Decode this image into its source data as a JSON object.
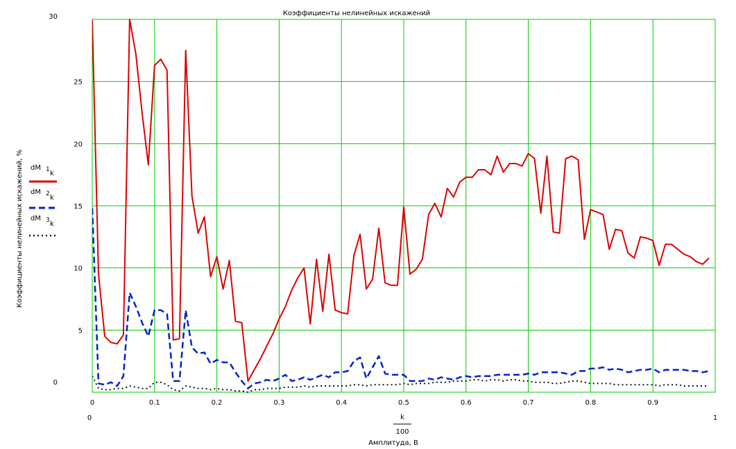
{
  "chart_data": {
    "type": "line",
    "title": "Коэффициенты нелинейных искажений",
    "ylabel": "Коэффициенты нелинейных искажений, %",
    "xlabel_expr": {
      "numerator": "k",
      "denominator": "100"
    },
    "xlabel": "Амплитуда, В",
    "xlim": [
      0,
      1
    ],
    "ylim": [
      0,
      30
    ],
    "x_range_labels": {
      "left": "0",
      "right": "1"
    },
    "y_range_labels": {
      "top": "30",
      "bottom": "0"
    },
    "x_ticks": [
      0,
      0.1,
      0.2,
      0.3,
      0.4,
      0.5,
      0.6,
      0.7,
      0.8,
      0.9
    ],
    "y_ticks": [
      5,
      10,
      15,
      20,
      25
    ],
    "grid": true,
    "grid_color": "#00cc00",
    "legend_position": "left",
    "series": [
      {
        "name": "dM1k",
        "legend": {
          "base": "dM",
          "sup": "1",
          "sub": "k"
        },
        "color": "#dd0000",
        "style": "solid",
        "x": [
          0.0,
          0.01,
          0.02,
          0.03,
          0.04,
          0.05,
          0.06,
          0.07,
          0.08,
          0.09,
          0.1,
          0.11,
          0.12,
          0.13,
          0.14,
          0.15,
          0.16,
          0.17,
          0.18,
          0.19,
          0.2,
          0.21,
          0.22,
          0.23,
          0.24,
          0.25,
          0.26,
          0.27,
          0.28,
          0.29,
          0.3,
          0.31,
          0.32,
          0.33,
          0.34,
          0.35,
          0.36,
          0.37,
          0.38,
          0.39,
          0.4,
          0.41,
          0.42,
          0.43,
          0.44,
          0.45,
          0.46,
          0.47,
          0.48,
          0.49,
          0.5,
          0.51,
          0.52,
          0.53,
          0.54,
          0.55,
          0.56,
          0.57,
          0.58,
          0.59,
          0.6,
          0.61,
          0.62,
          0.63,
          0.64,
          0.65,
          0.66,
          0.67,
          0.68,
          0.69,
          0.7,
          0.71,
          0.72,
          0.73,
          0.74,
          0.75,
          0.76,
          0.77,
          0.78,
          0.79,
          0.8,
          0.81,
          0.82,
          0.83,
          0.84,
          0.85,
          0.86,
          0.87,
          0.88,
          0.89,
          0.9,
          0.91,
          0.92,
          0.93,
          0.94,
          0.95,
          0.96,
          0.97,
          0.98,
          0.99
        ],
        "values": [
          30,
          9.5,
          4.5,
          4.0,
          3.9,
          4.6,
          30,
          27.2,
          22.5,
          18.3,
          26.3,
          26.8,
          25.9,
          4.2,
          4.3,
          27.5,
          15.8,
          12.8,
          14.1,
          9.3,
          10.9,
          8.3,
          10.6,
          5.7,
          5.6,
          0.9,
          1.8,
          2.7,
          3.7,
          4.7,
          5.9,
          6.9,
          8.2,
          9.2,
          10.0,
          5.5,
          10.7,
          6.5,
          11.1,
          6.6,
          6.4,
          6.3,
          11.0,
          12.7,
          8.3,
          9.1,
          13.2,
          8.8,
          8.6,
          8.6,
          14.9,
          9.5,
          9.9,
          10.7,
          14.3,
          15.2,
          14.1,
          16.4,
          15.7,
          16.9,
          17.3,
          17.3,
          17.9,
          17.9,
          17.5,
          19.0,
          17.7,
          18.4,
          18.4,
          18.2,
          19.2,
          18.8,
          14.4,
          19.0,
          12.9,
          12.8,
          18.8,
          19.0,
          18.7,
          12.3,
          14.7,
          14.5,
          14.3,
          11.5,
          13.1,
          13.0,
          11.2,
          10.8,
          12.5,
          12.4,
          12.2,
          10.2,
          11.9,
          11.9,
          11.5,
          11.1,
          10.9,
          10.5,
          10.3,
          10.8
        ]
      },
      {
        "name": "dM2k",
        "legend": {
          "base": "dM",
          "sup": "2",
          "sub": "k"
        },
        "color": "#0022cc",
        "style": "dashed",
        "x": [
          0.0,
          0.01,
          0.02,
          0.03,
          0.04,
          0.05,
          0.06,
          0.07,
          0.08,
          0.09,
          0.1,
          0.11,
          0.12,
          0.13,
          0.14,
          0.15,
          0.16,
          0.17,
          0.18,
          0.19,
          0.2,
          0.21,
          0.22,
          0.23,
          0.24,
          0.25,
          0.26,
          0.27,
          0.28,
          0.29,
          0.3,
          0.31,
          0.32,
          0.33,
          0.34,
          0.35,
          0.36,
          0.37,
          0.38,
          0.39,
          0.4,
          0.41,
          0.42,
          0.43,
          0.44,
          0.45,
          0.46,
          0.47,
          0.48,
          0.49,
          0.5,
          0.51,
          0.52,
          0.53,
          0.54,
          0.55,
          0.56,
          0.57,
          0.58,
          0.59,
          0.6,
          0.61,
          0.62,
          0.63,
          0.64,
          0.65,
          0.66,
          0.67,
          0.68,
          0.69,
          0.7,
          0.71,
          0.72,
          0.73,
          0.74,
          0.75,
          0.76,
          0.77,
          0.78,
          0.79,
          0.8,
          0.81,
          0.82,
          0.83,
          0.84,
          0.85,
          0.86,
          0.87,
          0.88,
          0.89,
          0.9,
          0.91,
          0.92,
          0.93,
          0.94,
          0.95,
          0.96,
          0.97,
          0.98,
          0.99
        ],
        "values": [
          14.8,
          0.7,
          0.6,
          0.8,
          0.5,
          1.3,
          8.0,
          6.9,
          5.6,
          4.5,
          6.6,
          6.6,
          6.3,
          0.9,
          0.9,
          6.6,
          3.6,
          3.1,
          3.2,
          2.3,
          2.6,
          2.4,
          2.4,
          1.6,
          0.9,
          0.3,
          0.7,
          0.8,
          1.0,
          0.9,
          1.1,
          1.4,
          0.9,
          1.0,
          1.2,
          1.0,
          1.2,
          1.4,
          1.2,
          1.6,
          1.6,
          1.7,
          2.5,
          2.8,
          1.1,
          2.0,
          2.9,
          1.5,
          1.4,
          1.4,
          1.4,
          0.9,
          0.9,
          0.9,
          1.1,
          1.0,
          1.2,
          1.1,
          1.0,
          1.2,
          1.3,
          1.2,
          1.3,
          1.3,
          1.3,
          1.4,
          1.4,
          1.4,
          1.4,
          1.4,
          1.5,
          1.4,
          1.6,
          1.6,
          1.6,
          1.6,
          1.5,
          1.4,
          1.7,
          1.7,
          1.9,
          1.9,
          2.0,
          1.8,
          1.9,
          1.8,
          1.6,
          1.7,
          1.8,
          1.8,
          1.9,
          1.6,
          1.8,
          1.8,
          1.8,
          1.8,
          1.7,
          1.7,
          1.6,
          1.7
        ]
      },
      {
        "name": "dM3k",
        "legend": {
          "base": "dM",
          "sup": "3",
          "sub": "k"
        },
        "color": "#111111",
        "style": "dotted",
        "x": [
          0.0,
          0.01,
          0.02,
          0.03,
          0.04,
          0.05,
          0.06,
          0.07,
          0.08,
          0.09,
          0.1,
          0.11,
          0.12,
          0.13,
          0.14,
          0.15,
          0.16,
          0.17,
          0.18,
          0.19,
          0.2,
          0.21,
          0.22,
          0.23,
          0.24,
          0.25,
          0.26,
          0.27,
          0.28,
          0.29,
          0.3,
          0.31,
          0.32,
          0.33,
          0.34,
          0.35,
          0.36,
          0.37,
          0.38,
          0.39,
          0.4,
          0.41,
          0.42,
          0.43,
          0.44,
          0.45,
          0.46,
          0.47,
          0.48,
          0.49,
          0.5,
          0.51,
          0.52,
          0.53,
          0.54,
          0.55,
          0.56,
          0.57,
          0.58,
          0.59,
          0.6,
          0.61,
          0.62,
          0.63,
          0.64,
          0.65,
          0.66,
          0.67,
          0.68,
          0.69,
          0.7,
          0.71,
          0.72,
          0.73,
          0.74,
          0.75,
          0.76,
          0.77,
          0.78,
          0.79,
          0.8,
          0.81,
          0.82,
          0.83,
          0.84,
          0.85,
          0.86,
          0.87,
          0.88,
          0.89,
          0.9,
          0.91,
          0.92,
          0.93,
          0.94,
          0.95,
          0.96,
          0.97,
          0.98,
          0.99
        ],
        "values": [
          1.3,
          0.3,
          0.2,
          0.2,
          0.3,
          0.3,
          0.5,
          0.4,
          0.3,
          0.3,
          0.8,
          0.8,
          0.6,
          0.2,
          0.1,
          0.5,
          0.4,
          0.3,
          0.3,
          0.2,
          0.3,
          0.2,
          0.2,
          0.1,
          0.1,
          0.0,
          0.2,
          0.2,
          0.3,
          0.3,
          0.3,
          0.4,
          0.4,
          0.4,
          0.5,
          0.4,
          0.5,
          0.5,
          0.5,
          0.5,
          0.5,
          0.5,
          0.6,
          0.6,
          0.5,
          0.6,
          0.6,
          0.6,
          0.6,
          0.6,
          0.7,
          0.6,
          0.7,
          0.7,
          0.7,
          0.8,
          0.8,
          0.8,
          0.9,
          0.9,
          0.9,
          1.0,
          1.0,
          0.9,
          1.0,
          1.0,
          0.9,
          1.0,
          1.0,
          0.9,
          0.9,
          0.8,
          0.8,
          0.8,
          0.7,
          0.7,
          0.8,
          0.9,
          0.9,
          0.8,
          0.7,
          0.7,
          0.7,
          0.7,
          0.6,
          0.6,
          0.6,
          0.6,
          0.6,
          0.6,
          0.6,
          0.5,
          0.6,
          0.6,
          0.6,
          0.5,
          0.5,
          0.5,
          0.5,
          0.5
        ]
      }
    ]
  }
}
